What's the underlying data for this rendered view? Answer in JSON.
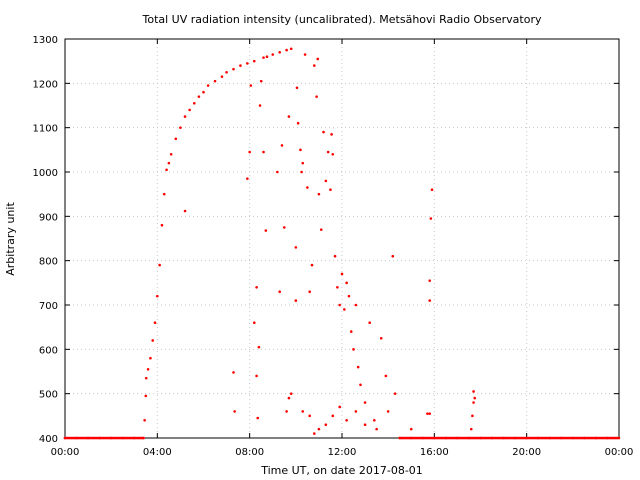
{
  "chart_data": {
    "type": "scatter",
    "title": "Total UV radiation intensity (uncalibrated). Metsähovi Radio Observatory",
    "xlabel": "Time UT, on date 2017-08-01",
    "ylabel": "Arbitrary unit",
    "xlim": [
      0,
      24
    ],
    "ylim": [
      400,
      1300
    ],
    "xticks": [
      0,
      4,
      8,
      12,
      16,
      20,
      24
    ],
    "xtick_labels": [
      "00:00",
      "04:00",
      "08:00",
      "12:00",
      "16:00",
      "20:00",
      "00:00"
    ],
    "yticks": [
      400,
      500,
      600,
      700,
      800,
      900,
      1000,
      1100,
      1200,
      1300
    ],
    "ytick_labels": [
      "400",
      "500",
      "600",
      "700",
      "800",
      "900",
      "1000",
      "1100",
      "1200",
      "1300"
    ],
    "grid": true,
    "marker_color": "#ff0000",
    "series": [
      {
        "points": [
          [
            0.0,
            400
          ],
          [
            0.5,
            400
          ],
          [
            1.0,
            400
          ],
          [
            1.5,
            400
          ],
          [
            2.0,
            400
          ],
          [
            2.5,
            400
          ],
          [
            3.0,
            400
          ],
          [
            3.4,
            400
          ],
          [
            3.45,
            440
          ],
          [
            3.5,
            495
          ],
          [
            3.52,
            535
          ],
          [
            3.6,
            555
          ],
          [
            3.7,
            580
          ],
          [
            3.8,
            620
          ],
          [
            3.9,
            660
          ],
          [
            4.0,
            720
          ],
          [
            4.1,
            790
          ],
          [
            4.2,
            880
          ],
          [
            4.3,
            950
          ],
          [
            4.4,
            1005
          ],
          [
            4.5,
            1020
          ],
          [
            4.6,
            1040
          ],
          [
            4.8,
            1075
          ],
          [
            5.0,
            1100
          ],
          [
            5.2,
            1125
          ],
          [
            5.4,
            1140
          ],
          [
            5.6,
            1155
          ],
          [
            5.8,
            1170
          ],
          [
            6.0,
            1180
          ],
          [
            6.2,
            1195
          ],
          [
            6.5,
            1205
          ],
          [
            6.8,
            1215
          ],
          [
            7.0,
            1225
          ],
          [
            7.3,
            1232
          ],
          [
            7.6,
            1240
          ],
          [
            7.9,
            1245
          ],
          [
            8.2,
            1250
          ],
          [
            8.6,
            1258
          ],
          [
            9.0,
            1265
          ],
          [
            9.3,
            1270
          ],
          [
            9.6,
            1275
          ],
          [
            9.8,
            1278
          ],
          [
            5.2,
            912
          ],
          [
            7.3,
            548
          ],
          [
            7.35,
            460
          ],
          [
            7.9,
            985
          ],
          [
            8.0,
            1045
          ],
          [
            8.05,
            1195
          ],
          [
            8.2,
            660
          ],
          [
            8.3,
            540
          ],
          [
            8.3,
            740
          ],
          [
            8.35,
            445
          ],
          [
            8.4,
            605
          ],
          [
            8.45,
            1150
          ],
          [
            8.5,
            1205
          ],
          [
            8.6,
            1045
          ],
          [
            8.7,
            868
          ],
          [
            8.75,
            1260
          ],
          [
            9.2,
            1000
          ],
          [
            9.3,
            730
          ],
          [
            9.4,
            1060
          ],
          [
            9.5,
            875
          ],
          [
            9.6,
            460
          ],
          [
            9.7,
            1125
          ],
          [
            10.0,
            830
          ],
          [
            10.0,
            710
          ],
          [
            10.05,
            1190
          ],
          [
            10.1,
            1110
          ],
          [
            10.2,
            1050
          ],
          [
            10.25,
            1000
          ],
          [
            10.3,
            1020
          ],
          [
            10.4,
            1265
          ],
          [
            10.5,
            965
          ],
          [
            10.6,
            730
          ],
          [
            10.7,
            790
          ],
          [
            10.8,
            1240
          ],
          [
            10.9,
            1170
          ],
          [
            10.95,
            1255
          ],
          [
            11.0,
            950
          ],
          [
            11.1,
            870
          ],
          [
            11.2,
            1090
          ],
          [
            11.3,
            980
          ],
          [
            11.4,
            1045
          ],
          [
            11.5,
            960
          ],
          [
            11.55,
            1085
          ],
          [
            11.6,
            1040
          ],
          [
            11.7,
            810
          ],
          [
            11.8,
            740
          ],
          [
            11.9,
            700
          ],
          [
            12.0,
            770
          ],
          [
            12.1,
            690
          ],
          [
            12.2,
            750
          ],
          [
            12.3,
            720
          ],
          [
            12.4,
            640
          ],
          [
            12.5,
            600
          ],
          [
            12.6,
            700
          ],
          [
            12.7,
            560
          ],
          [
            12.8,
            520
          ],
          [
            13.0,
            480
          ],
          [
            13.2,
            660
          ],
          [
            13.4,
            440
          ],
          [
            13.7,
            625
          ],
          [
            13.9,
            540
          ],
          [
            14.2,
            810
          ],
          [
            14.3,
            500
          ],
          [
            9.7,
            490
          ],
          [
            9.8,
            500
          ],
          [
            10.3,
            460
          ],
          [
            10.6,
            450
          ],
          [
            10.8,
            410
          ],
          [
            11.0,
            420
          ],
          [
            11.3,
            430
          ],
          [
            11.6,
            450
          ],
          [
            11.9,
            470
          ],
          [
            12.2,
            440
          ],
          [
            12.6,
            460
          ],
          [
            13.0,
            430
          ],
          [
            13.5,
            420
          ],
          [
            14.0,
            460
          ],
          [
            15.0,
            420
          ],
          [
            15.8,
            455
          ],
          [
            15.9,
            960
          ],
          [
            15.85,
            895
          ],
          [
            15.8,
            755
          ],
          [
            15.8,
            710
          ],
          [
            15.7,
            455
          ],
          [
            17.6,
            420
          ],
          [
            17.65,
            450
          ],
          [
            17.7,
            480
          ],
          [
            17.7,
            505
          ],
          [
            17.75,
            490
          ],
          [
            14.5,
            400
          ],
          [
            15.0,
            400
          ],
          [
            15.5,
            400
          ],
          [
            16.0,
            400
          ],
          [
            16.5,
            400
          ],
          [
            17.0,
            400
          ],
          [
            17.5,
            400
          ],
          [
            18.0,
            400
          ],
          [
            18.5,
            400
          ],
          [
            19.0,
            400
          ],
          [
            19.5,
            400
          ],
          [
            20.0,
            400
          ],
          [
            20.5,
            400
          ],
          [
            21.0,
            400
          ],
          [
            21.5,
            400
          ],
          [
            22.0,
            400
          ],
          [
            22.5,
            400
          ],
          [
            23.0,
            400
          ],
          [
            23.5,
            400
          ],
          [
            24.0,
            400
          ]
        ]
      }
    ]
  }
}
